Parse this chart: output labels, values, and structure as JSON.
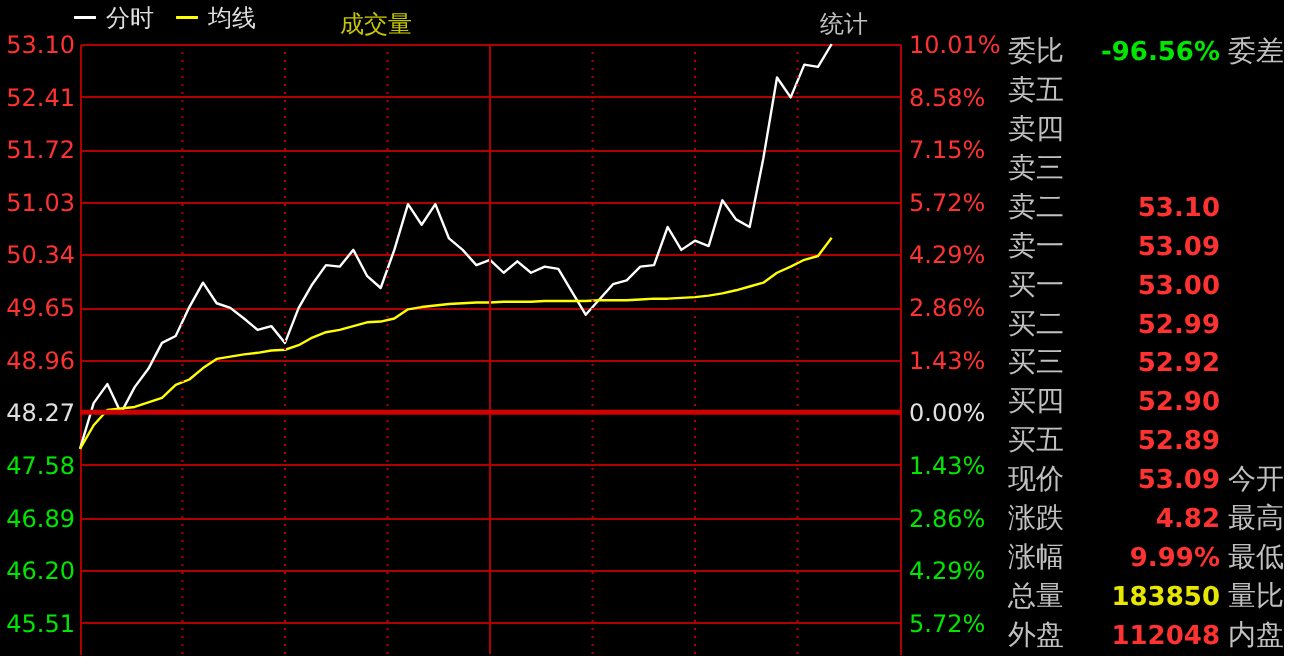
{
  "chart_data": [
    {
      "type": "line",
      "annotations": [
        "成交量",
        "统计"
      ],
      "categories": [
        null,
        null,
        null,
        null,
        null,
        null,
        null,
        null,
        null,
        null,
        null,
        null,
        null,
        null,
        null,
        null,
        null,
        null,
        null,
        null,
        null,
        null,
        null,
        null,
        null,
        null,
        null,
        null,
        null,
        null,
        null,
        null,
        null,
        null,
        null,
        null,
        null,
        null,
        null,
        null,
        null,
        null,
        null,
        null,
        null,
        null,
        null,
        null,
        null,
        null,
        null,
        null,
        null,
        null,
        null,
        null,
        null,
        null,
        null,
        null,
        null
      ],
      "series": [
        {
          "name": "分时",
          "color": "#ffffff",
          "values": [
            47.79,
            48.39,
            48.64,
            48.26,
            48.6,
            48.84,
            49.18,
            49.27,
            49.65,
            49.97,
            49.7,
            49.64,
            49.5,
            49.35,
            49.4,
            49.18,
            49.64,
            49.95,
            50.2,
            50.18,
            50.4,
            50.06,
            49.9,
            50.4,
            51.0,
            50.73,
            51.0,
            50.55,
            50.4,
            50.2,
            50.27,
            50.1,
            50.25,
            50.1,
            50.18,
            50.15,
            49.85,
            49.55,
            49.75,
            49.95,
            50.0,
            50.18,
            50.2,
            50.7,
            50.4,
            50.52,
            50.45,
            51.05,
            50.8,
            50.7,
            51.6,
            52.66,
            52.4,
            52.83,
            52.8,
            53.1,
            null,
            null,
            null,
            null,
            null
          ]
        },
        {
          "name": "均线",
          "color": "#ffff00",
          "values": [
            47.79,
            48.1,
            48.3,
            48.32,
            48.34,
            48.4,
            48.46,
            48.63,
            48.7,
            48.85,
            48.97,
            49.0,
            49.03,
            49.05,
            49.08,
            49.09,
            49.15,
            49.25,
            49.32,
            49.35,
            49.4,
            49.45,
            49.46,
            49.5,
            49.62,
            49.65,
            49.67,
            49.69,
            49.7,
            49.71,
            49.71,
            49.72,
            49.72,
            49.72,
            49.73,
            49.73,
            49.73,
            49.73,
            49.74,
            49.74,
            49.74,
            49.75,
            49.76,
            49.76,
            49.77,
            49.78,
            49.8,
            49.83,
            49.87,
            49.92,
            49.97,
            50.1,
            50.18,
            50.27,
            50.32,
            50.56,
            null,
            null,
            null,
            null,
            null
          ]
        }
      ],
      "ylim": [
        45.1,
        53.1
      ],
      "yticks": [
        {
          "value": 53.1,
          "label": "53.10"
        },
        52.41,
        51.72,
        51.03,
        50.34,
        49.65,
        48.96,
        48.27,
        47.58,
        46.89,
        {
          "value": 46.2,
          "label": "46.20"
        },
        45.51
      ],
      "y2lim": [
        -6.57,
        10.01
      ],
      "y2ticks": [
        {
          "value": 10.01,
          "label": "10.01%"
        },
        {
          "value": 8.58,
          "label": "8.58%"
        },
        {
          "value": 7.15,
          "label": "7.15%"
        },
        {
          "value": 5.72,
          "label": "5.72%"
        },
        {
          "value": 4.29,
          "label": "4.29%"
        },
        {
          "value": 2.86,
          "label": "2.86%"
        },
        {
          "value": 1.43,
          "label": "1.43%"
        },
        {
          "value": 0,
          "label": "0.00%"
        },
        {
          "value": -1.43,
          "label": "1.43%"
        },
        {
          "value": -2.86,
          "label": "2.86%"
        },
        {
          "value": -4.29,
          "label": "4.29%"
        },
        {
          "value": -5.72,
          "label": "5.72%"
        }
      ],
      "ref_lines": [
        {
          "axis": "y",
          "value": 48.27
        }
      ],
      "grid": true,
      "legend": "top left",
      "tick_labels": "y",
      "line_style": "solid",
      "marker": "none"
    },
    {
      "type": "other",
      "categories": [
        "委比",
        "卖五",
        "卖四",
        "卖三",
        "卖二",
        "卖一",
        "买一",
        "买二",
        "买三",
        "买四",
        "买五",
        "现价",
        "涨跌",
        "涨幅",
        "总量",
        "外盘"
      ],
      "value_labels": [
        "-96.56%",
        null,
        null,
        null,
        "53.10",
        "53.09",
        "53.00",
        "52.99",
        "52.92",
        "52.90",
        "52.89",
        "53.09",
        "4.82",
        "9.99%",
        "183850",
        "112048"
      ],
      "colors": [
        "#00e600",
        "#ff3232",
        "#ff3232",
        "#ff3232",
        "#ff3232",
        "#ff3232",
        "#ff3232",
        "#ff3232",
        "#ff3232",
        "#ff3232",
        "#ff3232",
        "#ff3232",
        "#ff3232",
        "#ff3232",
        "#e6e600",
        "#ff3232"
      ],
      "y2_categories": [
        "委差",
        null,
        null,
        null,
        null,
        null,
        null,
        null,
        null,
        null,
        null,
        "今开",
        "最高",
        "最低",
        "量比",
        "内盘"
      ]
    }
  ]
}
